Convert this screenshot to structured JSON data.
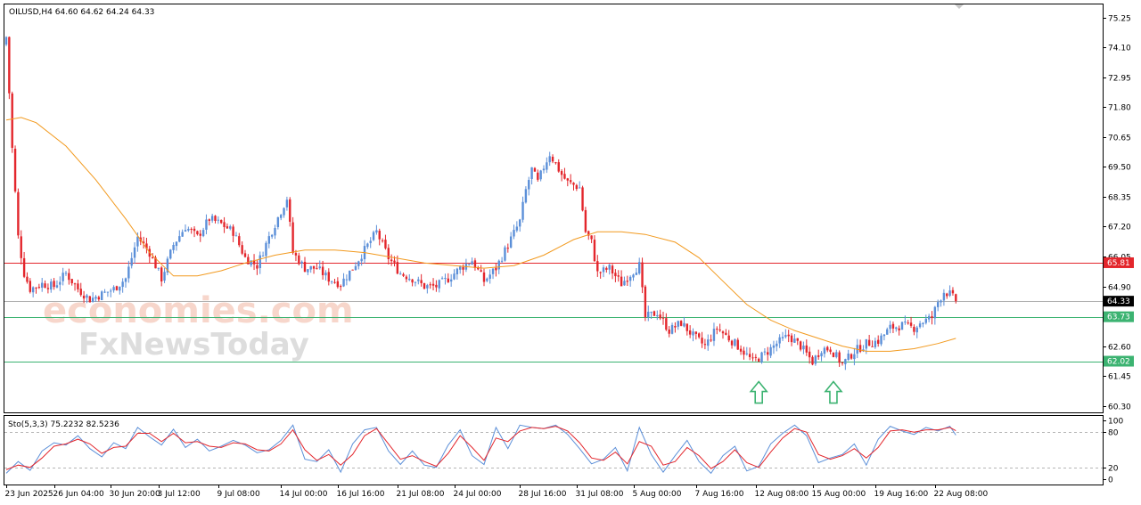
{
  "window": {
    "symbol_header": "OILUSD,H4  64.60 64.62 64.24 64.33"
  },
  "watermark": {
    "line1": "economies.com",
    "line2": "FxNewsToday"
  },
  "colors": {
    "up_candle": "#5b8fd8",
    "down_candle": "#e3262c",
    "moving_average": "#f29a1f",
    "resistance_line": "#e3262c",
    "support_line": "#3cb371",
    "current_price_line": "#b0b0b0",
    "arrow": "#3cb371",
    "stoch_main": "#5b8fd8",
    "stoch_signal": "#e3262c"
  },
  "chart_data": [
    {
      "type": "candlestick",
      "title": "OILUSD,H4",
      "ohlc_last": {
        "open": 64.6,
        "high": 64.62,
        "low": 64.24,
        "close": 64.33
      },
      "y_ticks": [
        "75.25",
        "74.10",
        "72.95",
        "71.80",
        "70.65",
        "69.50",
        "68.35",
        "67.20",
        "66.05",
        "64.90",
        "63.75",
        "62.60",
        "61.45",
        "60.30"
      ],
      "ylim": [
        60.05,
        75.75
      ],
      "x_ticks": [
        "23 Jun 2025",
        "26 Jun 04:00",
        "30 Jun 20:00",
        "3 Jul 12:00",
        "9 Jul 08:00",
        "14 Jul 00:00",
        "16 Jul 16:00",
        "21 Jul 08:00",
        "24 Jul 00:00",
        "28 Jul 16:00",
        "31 Jul 08:00",
        "5 Aug 00:00",
        "7 Aug 16:00",
        "12 Aug 08:00",
        "15 Aug 00:00",
        "19 Aug 16:00",
        "22 Aug 08:00"
      ],
      "x_tick_index": [
        0,
        16,
        35,
        51,
        71,
        92,
        111,
        131,
        150,
        172,
        191,
        210,
        231,
        251,
        270,
        291,
        311
      ],
      "close_path": [
        [
          0,
          74.5
        ],
        [
          2,
          70.2
        ],
        [
          4,
          66.8
        ],
        [
          6,
          65.4
        ],
        [
          8,
          64.8
        ],
        [
          12,
          65.0
        ],
        [
          16,
          64.9
        ],
        [
          20,
          65.4
        ],
        [
          24,
          64.8
        ],
        [
          28,
          64.4
        ],
        [
          32,
          64.6
        ],
        [
          36,
          64.8
        ],
        [
          40,
          65.2
        ],
        [
          44,
          66.8
        ],
        [
          48,
          66.2
        ],
        [
          52,
          65.2
        ],
        [
          56,
          66.5
        ],
        [
          60,
          67.2
        ],
        [
          64,
          66.8
        ],
        [
          68,
          67.5
        ],
        [
          72,
          67.3
        ],
        [
          76,
          67.0
        ],
        [
          80,
          66.0
        ],
        [
          84,
          65.7
        ],
        [
          88,
          66.8
        ],
        [
          92,
          67.8
        ],
        [
          94,
          68.3
        ],
        [
          96,
          66.2
        ],
        [
          100,
          65.6
        ],
        [
          104,
          65.6
        ],
        [
          108,
          65.2
        ],
        [
          112,
          65.0
        ],
        [
          116,
          65.6
        ],
        [
          120,
          66.3
        ],
        [
          124,
          67.0
        ],
        [
          128,
          66.0
        ],
        [
          132,
          65.4
        ],
        [
          136,
          65.2
        ],
        [
          140,
          64.9
        ],
        [
          144,
          64.9
        ],
        [
          148,
          65.2
        ],
        [
          152,
          65.6
        ],
        [
          156,
          65.9
        ],
        [
          160,
          65.1
        ],
        [
          164,
          65.6
        ],
        [
          168,
          66.5
        ],
        [
          172,
          67.4
        ],
        [
          174,
          68.6
        ],
        [
          176,
          69.4
        ],
        [
          178,
          68.9
        ],
        [
          180,
          69.5
        ],
        [
          182,
          70.0
        ],
        [
          184,
          69.6
        ],
        [
          186,
          69.2
        ],
        [
          188,
          68.9
        ],
        [
          190,
          68.8
        ],
        [
          192,
          68.7
        ],
        [
          194,
          67.0
        ],
        [
          196,
          66.6
        ],
        [
          198,
          65.4
        ],
        [
          202,
          65.6
        ],
        [
          206,
          65.0
        ],
        [
          210,
          65.5
        ],
        [
          212,
          65.7
        ],
        [
          214,
          63.7
        ],
        [
          218,
          63.9
        ],
        [
          222,
          63.2
        ],
        [
          226,
          63.5
        ],
        [
          230,
          63.0
        ],
        [
          234,
          62.6
        ],
        [
          238,
          63.3
        ],
        [
          242,
          62.9
        ],
        [
          246,
          62.5
        ],
        [
          250,
          62.0
        ],
        [
          254,
          62.3
        ],
        [
          258,
          62.7
        ],
        [
          262,
          63.0
        ],
        [
          266,
          62.6
        ],
        [
          270,
          62.0
        ],
        [
          273,
          62.5
        ],
        [
          276,
          62.5
        ],
        [
          280,
          61.9
        ],
        [
          284,
          62.4
        ],
        [
          288,
          62.7
        ],
        [
          292,
          62.8
        ],
        [
          296,
          63.3
        ],
        [
          300,
          63.4
        ],
        [
          304,
          63.3
        ],
        [
          306,
          63.5
        ],
        [
          308,
          63.6
        ],
        [
          310,
          63.7
        ],
        [
          312,
          64.3
        ],
        [
          314,
          64.7
        ],
        [
          316,
          64.6
        ],
        [
          318,
          64.33
        ]
      ],
      "ma_path": [
        [
          0,
          71.3
        ],
        [
          5,
          71.4
        ],
        [
          10,
          71.2
        ],
        [
          20,
          70.3
        ],
        [
          30,
          69.0
        ],
        [
          40,
          67.5
        ],
        [
          48,
          66.2
        ],
        [
          56,
          65.3
        ],
        [
          64,
          65.3
        ],
        [
          72,
          65.5
        ],
        [
          80,
          65.8
        ],
        [
          90,
          66.1
        ],
        [
          100,
          66.3
        ],
        [
          110,
          66.3
        ],
        [
          120,
          66.2
        ],
        [
          130,
          66.0
        ],
        [
          140,
          65.8
        ],
        [
          150,
          65.7
        ],
        [
          160,
          65.6
        ],
        [
          170,
          65.7
        ],
        [
          180,
          66.1
        ],
        [
          190,
          66.7
        ],
        [
          198,
          67.0
        ],
        [
          206,
          67.0
        ],
        [
          214,
          66.9
        ],
        [
          224,
          66.6
        ],
        [
          232,
          66.0
        ],
        [
          240,
          65.1
        ],
        [
          248,
          64.2
        ],
        [
          256,
          63.6
        ],
        [
          264,
          63.2
        ],
        [
          272,
          62.9
        ],
        [
          280,
          62.6
        ],
        [
          288,
          62.4
        ],
        [
          296,
          62.4
        ],
        [
          304,
          62.5
        ],
        [
          312,
          62.7
        ],
        [
          318,
          62.9
        ]
      ],
      "levels": [
        {
          "name": "resistance",
          "value": 65.81,
          "label": "65.81"
        },
        {
          "name": "support-upper",
          "value": 63.73,
          "label": "63.73"
        },
        {
          "name": "support-lower",
          "value": 62.02,
          "label": "62.02"
        }
      ],
      "current_price": {
        "value": 64.33,
        "label": "64.33"
      },
      "arrows": [
        {
          "index": 252,
          "tip_value": 61.3
        },
        {
          "index": 277,
          "tip_value": 61.3
        }
      ]
    },
    {
      "type": "line",
      "title": "Sto(5,3,3) 75.2232 82.5236",
      "y_ticks": [
        "100",
        "80",
        "20",
        "0"
      ],
      "levels": [
        80,
        20
      ],
      "ylim": [
        0,
        100
      ],
      "stoch_main_last": 75.2232,
      "stoch_signal_last": 82.5236,
      "main_path": [
        [
          0,
          10
        ],
        [
          4,
          30
        ],
        [
          8,
          15
        ],
        [
          12,
          48
        ],
        [
          16,
          62
        ],
        [
          20,
          58
        ],
        [
          24,
          74
        ],
        [
          28,
          52
        ],
        [
          32,
          38
        ],
        [
          36,
          62
        ],
        [
          40,
          52
        ],
        [
          44,
          88
        ],
        [
          48,
          72
        ],
        [
          52,
          58
        ],
        [
          56,
          85
        ],
        [
          60,
          54
        ],
        [
          64,
          68
        ],
        [
          68,
          48
        ],
        [
          72,
          56
        ],
        [
          76,
          66
        ],
        [
          80,
          58
        ],
        [
          84,
          45
        ],
        [
          88,
          50
        ],
        [
          92,
          66
        ],
        [
          96,
          92
        ],
        [
          100,
          34
        ],
        [
          104,
          30
        ],
        [
          108,
          50
        ],
        [
          112,
          12
        ],
        [
          116,
          60
        ],
        [
          120,
          84
        ],
        [
          124,
          88
        ],
        [
          128,
          48
        ],
        [
          132,
          25
        ],
        [
          136,
          48
        ],
        [
          140,
          24
        ],
        [
          144,
          20
        ],
        [
          148,
          58
        ],
        [
          152,
          84
        ],
        [
          156,
          40
        ],
        [
          160,
          25
        ],
        [
          164,
          88
        ],
        [
          168,
          52
        ],
        [
          172,
          92
        ],
        [
          176,
          88
        ],
        [
          180,
          86
        ],
        [
          184,
          92
        ],
        [
          188,
          76
        ],
        [
          192,
          52
        ],
        [
          196,
          26
        ],
        [
          200,
          34
        ],
        [
          204,
          54
        ],
        [
          208,
          14
        ],
        [
          212,
          88
        ],
        [
          216,
          42
        ],
        [
          220,
          12
        ],
        [
          224,
          40
        ],
        [
          228,
          66
        ],
        [
          232,
          30
        ],
        [
          236,
          10
        ],
        [
          240,
          40
        ],
        [
          244,
          56
        ],
        [
          248,
          14
        ],
        [
          252,
          22
        ],
        [
          256,
          60
        ],
        [
          260,
          78
        ],
        [
          264,
          92
        ],
        [
          268,
          74
        ],
        [
          272,
          28
        ],
        [
          276,
          36
        ],
        [
          280,
          42
        ],
        [
          284,
          60
        ],
        [
          288,
          24
        ],
        [
          292,
          68
        ],
        [
          296,
          90
        ],
        [
          300,
          82
        ],
        [
          304,
          76
        ],
        [
          308,
          88
        ],
        [
          312,
          82
        ],
        [
          316,
          90
        ],
        [
          318,
          75
        ]
      ],
      "signal_path": [
        [
          0,
          16
        ],
        [
          4,
          24
        ],
        [
          8,
          20
        ],
        [
          12,
          36
        ],
        [
          16,
          56
        ],
        [
          20,
          60
        ],
        [
          24,
          68
        ],
        [
          28,
          60
        ],
        [
          32,
          44
        ],
        [
          36,
          54
        ],
        [
          40,
          56
        ],
        [
          44,
          78
        ],
        [
          48,
          78
        ],
        [
          52,
          64
        ],
        [
          56,
          78
        ],
        [
          60,
          62
        ],
        [
          64,
          64
        ],
        [
          68,
          56
        ],
        [
          72,
          54
        ],
        [
          76,
          62
        ],
        [
          80,
          60
        ],
        [
          84,
          50
        ],
        [
          88,
          48
        ],
        [
          92,
          60
        ],
        [
          96,
          84
        ],
        [
          100,
          50
        ],
        [
          104,
          32
        ],
        [
          108,
          42
        ],
        [
          112,
          24
        ],
        [
          116,
          42
        ],
        [
          120,
          74
        ],
        [
          124,
          86
        ],
        [
          128,
          60
        ],
        [
          132,
          34
        ],
        [
          136,
          40
        ],
        [
          140,
          30
        ],
        [
          144,
          22
        ],
        [
          148,
          44
        ],
        [
          152,
          74
        ],
        [
          156,
          54
        ],
        [
          160,
          32
        ],
        [
          164,
          70
        ],
        [
          168,
          64
        ],
        [
          172,
          82
        ],
        [
          176,
          88
        ],
        [
          180,
          86
        ],
        [
          184,
          90
        ],
        [
          188,
          82
        ],
        [
          192,
          62
        ],
        [
          196,
          36
        ],
        [
          200,
          32
        ],
        [
          204,
          46
        ],
        [
          208,
          26
        ],
        [
          212,
          64
        ],
        [
          216,
          56
        ],
        [
          220,
          24
        ],
        [
          224,
          30
        ],
        [
          228,
          54
        ],
        [
          232,
          40
        ],
        [
          236,
          18
        ],
        [
          240,
          30
        ],
        [
          244,
          50
        ],
        [
          248,
          28
        ],
        [
          252,
          20
        ],
        [
          256,
          46
        ],
        [
          260,
          70
        ],
        [
          264,
          86
        ],
        [
          268,
          80
        ],
        [
          272,
          42
        ],
        [
          276,
          34
        ],
        [
          280,
          40
        ],
        [
          284,
          52
        ],
        [
          288,
          36
        ],
        [
          292,
          54
        ],
        [
          296,
          82
        ],
        [
          300,
          84
        ],
        [
          304,
          80
        ],
        [
          308,
          84
        ],
        [
          312,
          84
        ],
        [
          316,
          88
        ],
        [
          318,
          82.5
        ]
      ]
    }
  ]
}
